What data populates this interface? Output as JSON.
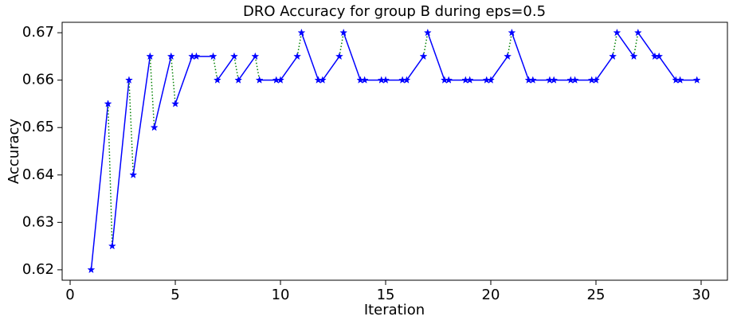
{
  "chart_data": {
    "type": "line",
    "title": "DRO Accuracy for group B during eps=0.5",
    "x_label": "Iteration",
    "y_label": "Accuracy",
    "x": [
      1,
      1.8,
      2,
      2.8,
      3,
      3.8,
      4,
      4.8,
      5,
      5.8,
      6,
      6.8,
      7,
      7.8,
      8,
      8.8,
      9,
      9.8,
      10,
      10.8,
      11,
      11.8,
      12,
      12.8,
      13,
      13.8,
      14,
      14.8,
      15,
      15.8,
      16,
      16.8,
      17,
      17.8,
      18,
      18.8,
      19,
      19.8,
      20,
      20.8,
      21,
      21.8,
      22,
      22.8,
      23,
      23.8,
      24,
      24.8,
      25,
      25.8,
      26,
      26.8,
      27,
      27.8,
      28,
      28.8,
      29,
      29.8
    ],
    "series": [
      {
        "color": "#0000ff",
        "connector_color": "#008000",
        "marker": "star",
        "values": [
          0.62,
          0.655,
          0.625,
          0.66,
          0.64,
          0.665,
          0.65,
          0.665,
          0.655,
          0.665,
          0.665,
          0.665,
          0.66,
          0.665,
          0.66,
          0.665,
          0.66,
          0.66,
          0.66,
          0.665,
          0.67,
          0.66,
          0.66,
          0.665,
          0.67,
          0.66,
          0.66,
          0.66,
          0.66,
          0.66,
          0.66,
          0.665,
          0.67,
          0.66,
          0.66,
          0.66,
          0.66,
          0.66,
          0.66,
          0.665,
          0.67,
          0.66,
          0.66,
          0.66,
          0.66,
          0.66,
          0.66,
          0.66,
          0.66,
          0.665,
          0.67,
          0.665,
          0.67,
          0.665,
          0.665,
          0.66,
          0.66,
          0.66
        ]
      }
    ],
    "xlim": [
      -0.38,
      31.25
    ],
    "ylim": [
      0.6178,
      0.6722
    ],
    "xticks": [
      0,
      5,
      10,
      15,
      20,
      25,
      30
    ],
    "yticks": [
      0.62,
      0.63,
      0.64,
      0.65,
      0.66,
      0.67
    ],
    "grid": false
  }
}
